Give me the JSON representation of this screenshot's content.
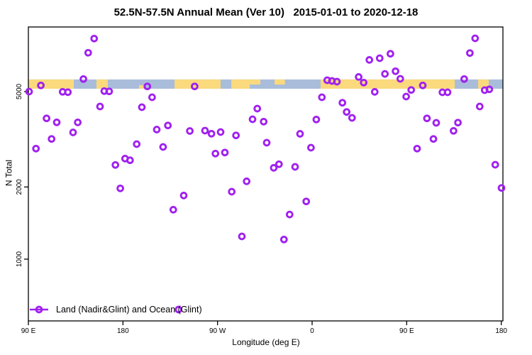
{
  "chart_data": {
    "type": "scatter",
    "title": "52.5N-57.5N Annual Mean (Ver 10)   2015-01-01 to 2020-12-18",
    "xlabel": "Longitude (deg E)",
    "ylabel": "N Total",
    "legend": {
      "label": "Land (Nadir&Glint) and Ocean (Glint)",
      "marker": "open-circle-on-line",
      "position": "bottom-left-inside"
    },
    "marker_color": "#A020F0",
    "x_axis": {
      "note": "unwrapped longitude axis, repeats eastward: 90E..180..90W..0..90E..180",
      "range_plot_deg": [
        90,
        541.6
      ],
      "ticks": [
        {
          "deg": 90,
          "label": "90 E"
        },
        {
          "deg": 180,
          "label": "180"
        },
        {
          "deg": 270,
          "label": "90 W"
        },
        {
          "deg": 360,
          "label": "0"
        },
        {
          "deg": 450,
          "label": "90 E"
        },
        {
          "deg": 540,
          "label": "180"
        }
      ]
    },
    "y_axis": {
      "scale": "log",
      "range": [
        553,
        9300
      ],
      "ticks": [
        {
          "value": 5000,
          "label": "5000"
        },
        {
          "value": 2000,
          "label": "2000"
        },
        {
          "value": 1000,
          "label": "1000"
        }
      ]
    },
    "land_ocean_band": {
      "n_low": 5140,
      "n_high": 5620,
      "land_color": "#FBD97D",
      "ocean_color": "#A9BDDB",
      "segments": [
        {
          "t0": 90.0,
          "t1": 133.2,
          "surface": "land"
        },
        {
          "t0": 133.2,
          "t1": 154.8,
          "surface": "ocean"
        },
        {
          "t0": 154.8,
          "t1": 165.6,
          "surface": "land"
        },
        {
          "t0": 165.6,
          "t1": 229.1,
          "surface": "ocean"
        },
        {
          "t0": 195.3,
          "t1": 200.7,
          "surface": "land",
          "part": "bottom"
        },
        {
          "t0": 229.1,
          "t1": 272.9,
          "surface": "land"
        },
        {
          "t0": 272.9,
          "t1": 283.1,
          "surface": "ocean"
        },
        {
          "t0": 283.1,
          "t1": 300.6,
          "surface": "land"
        },
        {
          "t0": 300.6,
          "t1": 310.7,
          "surface": "land",
          "part": "top"
        },
        {
          "t0": 310.7,
          "t1": 324.3,
          "surface": "ocean"
        },
        {
          "t0": 324.3,
          "t1": 334.1,
          "surface": "land",
          "part": "top"
        },
        {
          "t0": 334.1,
          "t1": 368.1,
          "surface": "ocean"
        },
        {
          "t0": 368.1,
          "t1": 495.7,
          "surface": "land"
        },
        {
          "t0": 495.7,
          "t1": 518.0,
          "surface": "ocean"
        },
        {
          "t0": 518.0,
          "t1": 528.1,
          "surface": "land"
        },
        {
          "t0": 528.1,
          "t1": 541.6,
          "surface": "ocean"
        }
      ]
    },
    "points": [
      [
        90.7,
        5000
      ],
      [
        97.2,
        2892
      ],
      [
        101.9,
        5306
      ],
      [
        107.3,
        3866
      ],
      [
        112.1,
        3172
      ],
      [
        117.0,
        3722
      ],
      [
        122.6,
        4990
      ],
      [
        127.6,
        4975
      ],
      [
        132.5,
        3379
      ],
      [
        137.0,
        3719
      ],
      [
        142.4,
        5642
      ],
      [
        146.9,
        7261
      ],
      [
        152.6,
        8321
      ],
      [
        158.2,
        4333
      ],
      [
        162.2,
        5024
      ],
      [
        166.9,
        5010
      ],
      [
        172.8,
        2472
      ],
      [
        177.5,
        1974
      ],
      [
        182.0,
        2627
      ],
      [
        186.7,
        2586
      ],
      [
        193.1,
        3018
      ],
      [
        198.0,
        4303
      ],
      [
        203.2,
        5256
      ],
      [
        207.7,
        4735
      ],
      [
        212.2,
        3471
      ],
      [
        218.2,
        2937
      ],
      [
        222.8,
        3613
      ],
      [
        227.9,
        1608
      ],
      [
        232.9,
        616
      ],
      [
        237.8,
        1843
      ],
      [
        243.6,
        3425
      ],
      [
        248.2,
        5256
      ],
      [
        258.1,
        3436
      ],
      [
        264.2,
        3337
      ],
      [
        268.0,
        2757
      ],
      [
        272.9,
        3389
      ],
      [
        277.0,
        2786
      ],
      [
        283.5,
        1912
      ],
      [
        287.6,
        3283
      ],
      [
        293.2,
        1244
      ],
      [
        297.7,
        2112
      ],
      [
        303.3,
        3833
      ],
      [
        307.8,
        4245
      ],
      [
        313.9,
        3747
      ],
      [
        316.8,
        3060
      ],
      [
        323.5,
        2404
      ],
      [
        328.5,
        2489
      ],
      [
        333.2,
        1208
      ],
      [
        338.6,
        1536
      ],
      [
        343.8,
        2427
      ],
      [
        348.5,
        3332
      ],
      [
        354.4,
        1741
      ],
      [
        358.9,
        2917
      ],
      [
        364.0,
        3825
      ],
      [
        369.3,
        4735
      ],
      [
        374.4,
        5577
      ],
      [
        378.9,
        5539
      ],
      [
        383.6,
        5501
      ],
      [
        388.8,
        4493
      ],
      [
        392.9,
        4111
      ],
      [
        398.0,
        3885
      ],
      [
        404.3,
        5757
      ],
      [
        409.1,
        5454
      ],
      [
        414.5,
        6781
      ],
      [
        419.6,
        4989
      ],
      [
        424.3,
        6889
      ],
      [
        429.3,
        5928
      ],
      [
        434.5,
        7192
      ],
      [
        439.4,
        6083
      ],
      [
        443.9,
        5653
      ],
      [
        449.5,
        4767
      ],
      [
        454.3,
        5079
      ],
      [
        459.9,
        2892
      ],
      [
        465.3,
        5306
      ],
      [
        469.3,
        3867
      ],
      [
        475.4,
        3172
      ],
      [
        478.1,
        3704
      ],
      [
        484.0,
        4966
      ],
      [
        488.9,
        4966
      ],
      [
        494.6,
        3430
      ],
      [
        498.8,
        3712
      ],
      [
        504.7,
        5642
      ],
      [
        510.1,
        7243
      ],
      [
        515.1,
        8340
      ],
      [
        519.5,
        4333
      ],
      [
        524.2,
        5068
      ],
      [
        528.6,
        5113
      ],
      [
        534.3,
        2477
      ],
      [
        540.2,
        1982
      ]
    ]
  }
}
